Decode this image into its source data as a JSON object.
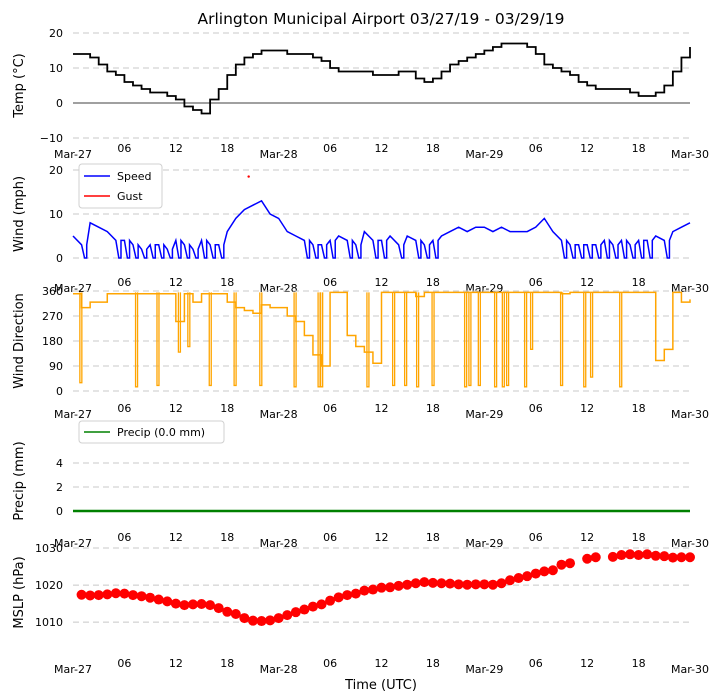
{
  "title": "Arlington Municipal Airport 03/27/19 - 03/29/19",
  "xlabel": "Time (UTC)",
  "x_ticks": [
    "Mar-27",
    "06",
    "12",
    "18",
    "Mar-28",
    "06",
    "12",
    "18",
    "Mar-29",
    "06",
    "12",
    "18",
    "Mar-30"
  ],
  "x_range_hours": [
    0,
    72
  ],
  "colors": {
    "temp": "#000000",
    "speed": "#0000ff",
    "gust": "#ff0000",
    "direction": "#ffa500",
    "precip": "#008000",
    "mslp": "#ff0000",
    "grid": "#c8c8c8"
  },
  "chart_data": [
    {
      "type": "line",
      "name": "temperature",
      "ylabel": "Temp (°C)",
      "ylim": [
        -10,
        20
      ],
      "yticks": [
        "−10",
        "0",
        "10",
        "20"
      ],
      "ytick_values": [
        -10,
        0,
        10,
        20
      ],
      "zero_line": true,
      "x": [
        0,
        1,
        2,
        3,
        4,
        5,
        6,
        7,
        8,
        9,
        10,
        11,
        12,
        13,
        14,
        15,
        16,
        17,
        18,
        19,
        20,
        21,
        22,
        23,
        24,
        25,
        26,
        27,
        28,
        29,
        30,
        31,
        32,
        33,
        34,
        35,
        36,
        37,
        38,
        39,
        40,
        41,
        42,
        43,
        44,
        45,
        46,
        47,
        48,
        49,
        50,
        51,
        52,
        53,
        54,
        55,
        56,
        57,
        58,
        59,
        60,
        61,
        62,
        63,
        64,
        65,
        66,
        67,
        68,
        69,
        70,
        71,
        72
      ],
      "values": [
        14,
        14,
        13,
        11,
        9,
        8,
        6,
        5,
        4,
        3,
        3,
        2,
        1,
        -1,
        -2,
        -3,
        1,
        4,
        8,
        11,
        13,
        14,
        15,
        15,
        15,
        14,
        14,
        14,
        13,
        12,
        10,
        9,
        9,
        9,
        9,
        8,
        8,
        8,
        9,
        9,
        7,
        6,
        7,
        9,
        11,
        12,
        13,
        14,
        15,
        16,
        17,
        17,
        17,
        16,
        14,
        11,
        10,
        9,
        8,
        6,
        5,
        4,
        4,
        4,
        4,
        3,
        2,
        2,
        3,
        5,
        9,
        13,
        16
      ]
    },
    {
      "type": "line",
      "name": "wind",
      "ylabel": "Wind (mph)",
      "ylim": [
        0,
        20
      ],
      "yticks": [
        "0",
        "10",
        "20"
      ],
      "ytick_values": [
        0,
        10,
        20
      ],
      "legend": [
        "Speed",
        "Gust"
      ],
      "series": [
        {
          "name": "Speed",
          "x": [
            0,
            1,
            2,
            3,
            4,
            5,
            6,
            7,
            8,
            9,
            10,
            11,
            12,
            13,
            14,
            15,
            16,
            17,
            18,
            19,
            20,
            21,
            22,
            23,
            24,
            25,
            26,
            27,
            28,
            29,
            30,
            31,
            32,
            33,
            34,
            35,
            36,
            37,
            38,
            39,
            40,
            41,
            42,
            43,
            44,
            45,
            46,
            47,
            48,
            49,
            50,
            51,
            52,
            53,
            54,
            55,
            56,
            57,
            58,
            59,
            60,
            61,
            62,
            63,
            64,
            65,
            66,
            67,
            68,
            69,
            70,
            71,
            72
          ],
          "values": [
            5,
            3,
            8,
            7,
            6,
            4,
            4,
            3,
            2,
            3,
            3,
            2,
            4,
            3,
            2,
            4,
            3,
            3,
            6,
            9,
            11,
            12,
            13,
            10,
            9,
            6,
            5,
            4,
            3,
            3,
            4,
            5,
            4,
            3,
            6,
            4,
            4,
            5,
            3,
            5,
            4,
            3,
            4,
            5,
            6,
            7,
            6,
            7,
            7,
            6,
            7,
            6,
            6,
            6,
            7,
            9,
            6,
            4,
            3,
            3,
            3,
            3,
            4,
            3,
            4,
            3,
            4,
            4,
            5,
            4,
            6,
            7,
            8
          ]
        },
        {
          "name": "Gust",
          "x": [
            20.5
          ],
          "values": [
            18.5
          ]
        }
      ]
    },
    {
      "type": "line",
      "name": "wind_direction",
      "ylabel": "Wind Direction",
      "ylim": [
        0,
        360
      ],
      "yticks": [
        "0",
        "90",
        "180",
        "270",
        "360"
      ],
      "ytick_values": [
        0,
        90,
        180,
        270,
        360
      ],
      "x": [
        0,
        1,
        2,
        3,
        4,
        5,
        6,
        7,
        8,
        9,
        10,
        11,
        12,
        13,
        14,
        15,
        16,
        17,
        18,
        19,
        20,
        21,
        22,
        23,
        24,
        25,
        26,
        27,
        28,
        29,
        30,
        31,
        32,
        33,
        34,
        35,
        36,
        37,
        38,
        39,
        40,
        41,
        42,
        43,
        44,
        45,
        46,
        47,
        48,
        49,
        50,
        51,
        52,
        53,
        54,
        55,
        56,
        57,
        58,
        59,
        60,
        61,
        62,
        63,
        64,
        65,
        66,
        67,
        68,
        69,
        70,
        71,
        72
      ],
      "values": [
        350,
        300,
        320,
        320,
        350,
        350,
        350,
        350,
        350,
        350,
        350,
        350,
        250,
        350,
        320,
        350,
        350,
        350,
        320,
        300,
        290,
        280,
        310,
        300,
        300,
        270,
        250,
        200,
        130,
        90,
        355,
        355,
        200,
        160,
        140,
        100,
        355,
        355,
        355,
        355,
        340,
        355,
        355,
        355,
        355,
        355,
        355,
        355,
        355,
        355,
        355,
        355,
        355,
        355,
        355,
        355,
        355,
        350,
        355,
        355,
        355,
        355,
        355,
        355,
        355,
        355,
        355,
        355,
        110,
        150,
        355,
        320,
        330
      ],
      "dips": [
        [
          0.8,
          30
        ],
        [
          7.3,
          15
        ],
        [
          9.8,
          20
        ],
        [
          12.3,
          140
        ],
        [
          13.4,
          160
        ],
        [
          15.9,
          20
        ],
        [
          18.8,
          20
        ],
        [
          21.8,
          20
        ],
        [
          25.8,
          15
        ],
        [
          28.6,
          15
        ],
        [
          28.9,
          15
        ],
        [
          34.3,
          15
        ],
        [
          37.3,
          20
        ],
        [
          38.7,
          20
        ],
        [
          40.1,
          15
        ],
        [
          41.9,
          20
        ],
        [
          45.7,
          15
        ],
        [
          46.2,
          20
        ],
        [
          47.3,
          20
        ],
        [
          49.2,
          15
        ],
        [
          50.1,
          15
        ],
        [
          50.6,
          20
        ],
        [
          52.7,
          15
        ],
        [
          53.4,
          150
        ],
        [
          56.9,
          20
        ],
        [
          59.6,
          15
        ],
        [
          60.4,
          50
        ],
        [
          63.8,
          15
        ]
      ]
    },
    {
      "type": "line",
      "name": "precip",
      "ylabel": "Precip (mm)",
      "ylim": [
        0,
        5
      ],
      "yticks": [
        "0",
        "2",
        "4"
      ],
      "ytick_values": [
        0,
        2,
        4
      ],
      "legend": [
        "Precip (0.0 mm)"
      ],
      "x": [
        0,
        72
      ],
      "values": [
        0,
        0
      ]
    },
    {
      "type": "scatter",
      "name": "mslp",
      "ylabel": "MSLP (hPa)",
      "xlabel": "Time (UTC)",
      "ylim": [
        1006,
        1030
      ],
      "yticks": [
        "1010",
        "1020",
        "1030"
      ],
      "ytick_values": [
        1010,
        1020,
        1030
      ],
      "x": [
        1,
        2,
        3,
        4,
        5,
        6,
        7,
        8,
        9,
        10,
        11,
        12,
        13,
        14,
        15,
        16,
        17,
        18,
        19,
        20,
        21,
        22,
        23,
        24,
        25,
        26,
        27,
        28,
        29,
        30,
        31,
        32,
        33,
        34,
        35,
        36,
        37,
        38,
        39,
        40,
        41,
        42,
        43,
        44,
        45,
        46,
        47,
        48,
        49,
        50,
        51,
        52,
        53,
        54,
        55,
        56,
        57,
        58,
        60,
        61,
        63,
        64,
        65,
        66,
        67,
        68,
        69,
        70,
        71,
        72
      ],
      "values": [
        1017.4,
        1017.2,
        1017.3,
        1017.5,
        1017.8,
        1017.7,
        1017.3,
        1017,
        1016.6,
        1016.1,
        1015.6,
        1015,
        1014.6,
        1014.8,
        1014.9,
        1014.6,
        1013.8,
        1012.8,
        1012.2,
        1011.1,
        1010.4,
        1010.3,
        1010.5,
        1011.1,
        1011.9,
        1012.7,
        1013.4,
        1014.2,
        1014.8,
        1015.8,
        1016.7,
        1017.3,
        1017.7,
        1018.5,
        1018.8,
        1019.3,
        1019.4,
        1019.8,
        1020.1,
        1020.5,
        1020.8,
        1020.6,
        1020.5,
        1020.4,
        1020.2,
        1020.1,
        1020.2,
        1020.2,
        1020.1,
        1020.5,
        1021.3,
        1021.9,
        1022.4,
        1023.1,
        1023.7,
        1024,
        1025.5,
        1025.9,
        1027.1,
        1027.5,
        1027.6,
        1028.1,
        1028.3,
        1028.1,
        1028.3,
        1027.9,
        1027.8,
        1027.4,
        1027.5,
        1027.5
      ]
    }
  ]
}
